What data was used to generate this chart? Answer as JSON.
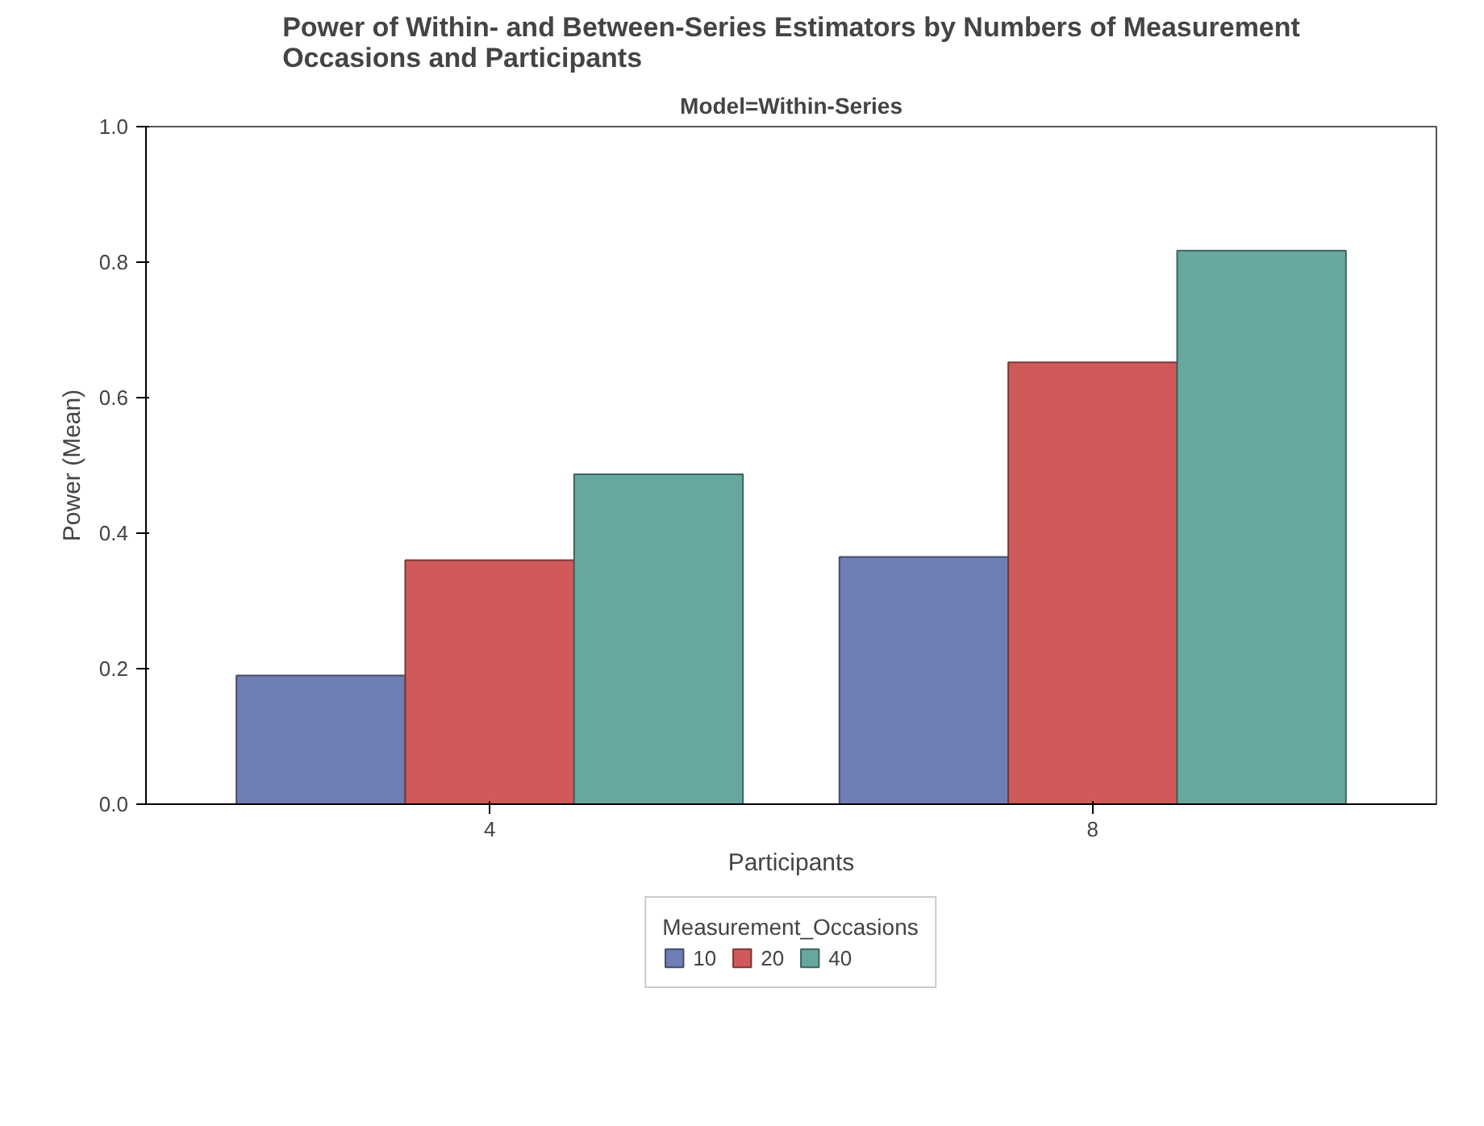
{
  "chart_data": {
    "type": "bar",
    "title": "Power of Within- and Between-Series Estimators by Numbers of Measurement Occasions and Participants",
    "subtitle": "Model=Within-Series",
    "xlabel": "Participants",
    "ylabel": "Power (Mean)",
    "legend_title": "Measurement_Occasions",
    "categories": [
      "4",
      "8"
    ],
    "series": [
      {
        "name": "10",
        "color": "#6f7fb5",
        "values": [
          0.19,
          0.365
        ]
      },
      {
        "name": "20",
        "color": "#d05a5a",
        "values": [
          0.36,
          0.652
        ]
      },
      {
        "name": "40",
        "color": "#66a8a0",
        "values": [
          0.487,
          0.817
        ]
      }
    ],
    "ylim": [
      0,
      1.0
    ],
    "yticks": [
      {
        "value": 0,
        "label": "0.0"
      },
      {
        "value": 0.2,
        "label": "0.2"
      },
      {
        "value": 0.4,
        "label": "0.4"
      },
      {
        "value": 0.6,
        "label": "0.6"
      },
      {
        "value": 0.8,
        "label": "0.8"
      },
      {
        "value": 1.0,
        "label": "1.0"
      }
    ],
    "grid": false,
    "legend": "bottom"
  }
}
